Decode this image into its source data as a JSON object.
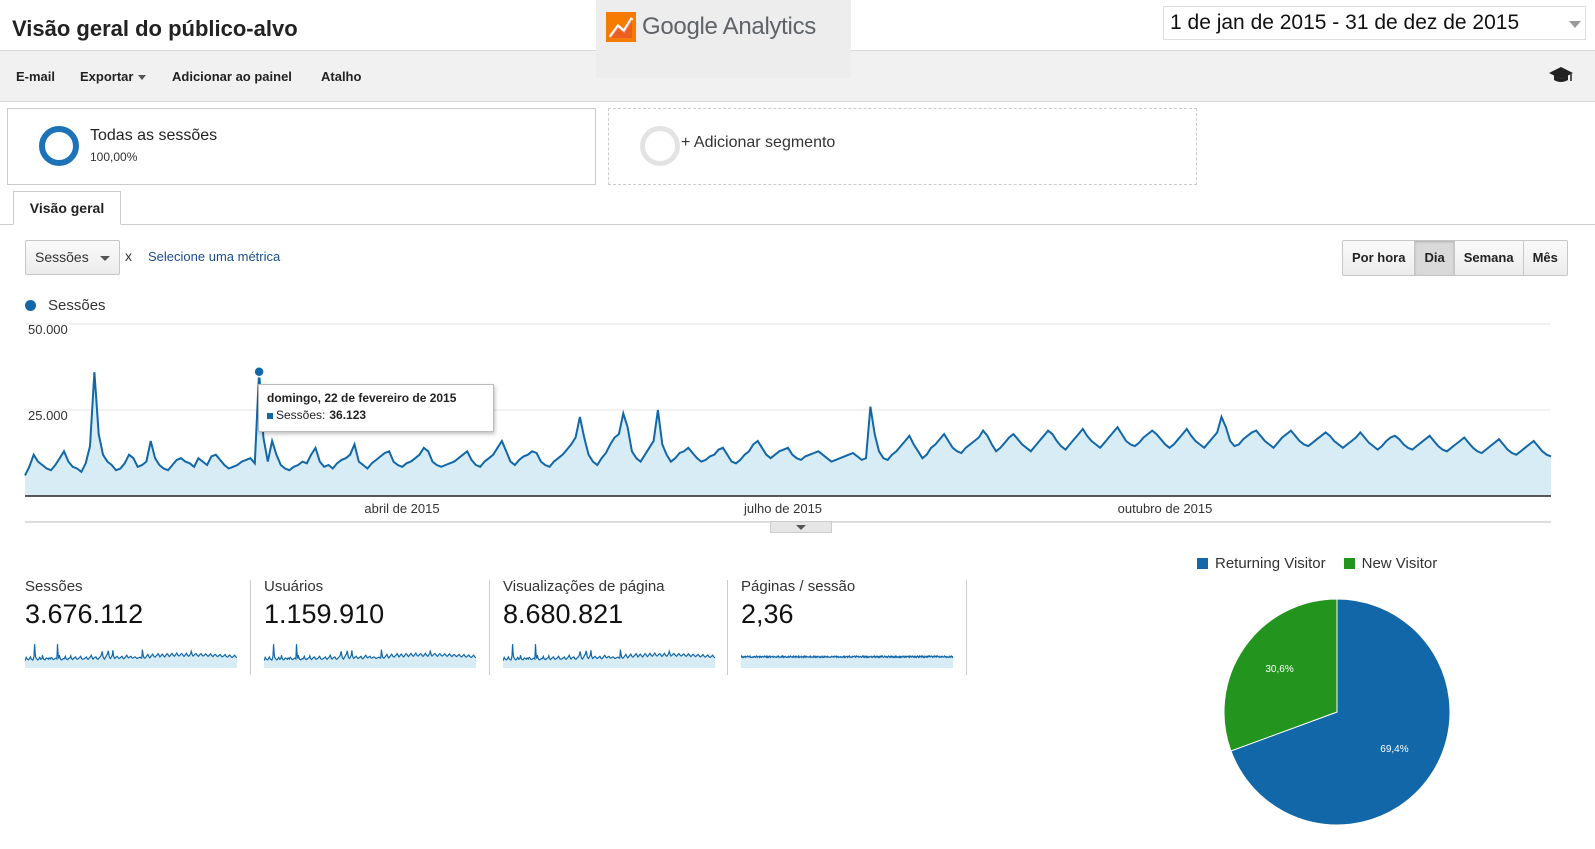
{
  "header": {
    "title": "Visão geral do público-alvo",
    "logo_text": "Google Analytics",
    "date_range": "1 de jan de 2015 - 31 de dez de 2015"
  },
  "toolbar": {
    "email": "E-mail",
    "export": "Exportar",
    "add_to_dashboard": "Adicionar ao painel",
    "shortcut": "Atalho"
  },
  "segments": {
    "all_sessions": {
      "name": "Todas as sessões",
      "percent": "100,00%"
    },
    "add_segment": "+ Adicionar segmento"
  },
  "tabs": {
    "overview": "Visão geral"
  },
  "metric_controls": {
    "selected_metric": "Sessões",
    "remove": "x",
    "select_metric_link": "Selecione uma métrica"
  },
  "granularity": {
    "hourly": "Por hora",
    "day": "Dia",
    "week": "Semana",
    "month": "Mês",
    "active": "Dia"
  },
  "chart": {
    "legend_label": "Sessões",
    "y_ticks": [
      "50.000",
      "25.000"
    ],
    "x_ticks": [
      "abril de 2015",
      "julho de 2015",
      "outubro de 2015"
    ],
    "tooltip": {
      "title": "domingo, 22 de fevereiro de 2015",
      "series": "Sessões:",
      "value": "36.123"
    }
  },
  "chart_data": [
    {
      "type": "area",
      "series": [
        {
          "name": "Sessões",
          "color": "#1167a8",
          "values": [
            6000,
            8500,
            12000,
            10000,
            9000,
            8000,
            7500,
            9000,
            11000,
            13000,
            10000,
            8500,
            8000,
            7000,
            9500,
            14500,
            36000,
            18000,
            12000,
            10000,
            9000,
            7500,
            8000,
            9500,
            12000,
            11000,
            8500,
            9000,
            10000,
            16000,
            11000,
            9000,
            8000,
            7500,
            9000,
            10500,
            11000,
            10000,
            9500,
            8500,
            11000,
            10000,
            9000,
            11500,
            12000,
            10500,
            9000,
            8000,
            8500,
            9000,
            10000,
            10500,
            11000,
            9500,
            36123,
            17000,
            10000,
            16000,
            12000,
            9000,
            8000,
            7500,
            8500,
            9000,
            10000,
            9500,
            12000,
            14000,
            10000,
            8500,
            9000,
            8000,
            9500,
            10500,
            11000,
            12000,
            15000,
            10000,
            9000,
            8000,
            9500,
            10500,
            11500,
            12500,
            13000,
            10000,
            9000,
            8500,
            9500,
            10000,
            11000,
            12000,
            14000,
            13000,
            10000,
            9000,
            8500,
            9000,
            9500,
            10000,
            11000,
            12000,
            13000,
            10500,
            9000,
            8500,
            10000,
            11000,
            12000,
            14000,
            16000,
            13000,
            10000,
            9000,
            10500,
            11500,
            12000,
            13000,
            12500,
            10000,
            9000,
            8500,
            10000,
            11000,
            12000,
            13500,
            15000,
            17000,
            23000,
            17000,
            12000,
            10000,
            9000,
            11000,
            12500,
            15000,
            17000,
            18000,
            24000,
            20000,
            13000,
            11000,
            10000,
            12000,
            14000,
            16000,
            25000,
            15000,
            12000,
            10000,
            11000,
            12500,
            13000,
            14000,
            12500,
            11000,
            10000,
            10500,
            11500,
            12000,
            13500,
            14000,
            12000,
            10000,
            9500,
            10500,
            12000,
            13000,
            15000,
            16000,
            14000,
            12000,
            11000,
            12000,
            13000,
            13500,
            14000,
            12000,
            11000,
            10500,
            11500,
            12000,
            12500,
            13000,
            12000,
            11000,
            10000,
            10500,
            11000,
            11500,
            12000,
            12500,
            11500,
            10500,
            11000,
            26000,
            18000,
            13000,
            11000,
            10500,
            12000,
            13000,
            14500,
            16000,
            17500,
            15000,
            13000,
            11000,
            12000,
            14000,
            15000,
            16500,
            18000,
            16000,
            14000,
            13000,
            12500,
            14000,
            15000,
            16000,
            17000,
            19000,
            17500,
            15000,
            13000,
            14000,
            15500,
            17000,
            18000,
            16500,
            15000,
            14000,
            13000,
            14500,
            16000,
            17500,
            19000,
            18000,
            16000,
            14500,
            13500,
            15000,
            16500,
            18000,
            19500,
            17500,
            16000,
            15000,
            14000,
            15500,
            17000,
            18500,
            20000,
            18000,
            16000,
            15000,
            14500,
            15500,
            17000,
            18000,
            19000,
            18000,
            16500,
            15000,
            14000,
            15000,
            16500,
            18000,
            19500,
            17500,
            16000,
            15000,
            14000,
            15500,
            17000,
            18500,
            23000,
            20000,
            16000,
            14500,
            15000,
            16500,
            17500,
            18500,
            19000,
            17500,
            16000,
            15000,
            14000,
            15500,
            17000,
            18000,
            19000,
            17500,
            16000,
            15000,
            14500,
            15500,
            16500,
            17500,
            18500,
            17500,
            16000,
            15000,
            14000,
            15000,
            16000,
            17000,
            18500,
            17000,
            15500,
            14500,
            13500,
            14500,
            16000,
            17000,
            17500,
            16500,
            15000,
            14000,
            13500,
            14500,
            15500,
            16500,
            17500,
            16000,
            14500,
            13500,
            13000,
            14000,
            15000,
            16000,
            17000,
            15500,
            14000,
            13000,
            12500,
            13500,
            14500,
            15500,
            16500,
            15000,
            13500,
            12500,
            12000,
            13000,
            14000,
            15000,
            16000,
            14500,
            13000,
            12000,
            11500
          ]
        }
      ],
      "ylim": [
        0,
        50000
      ],
      "y_ticks": [
        "50.000",
        "25.000"
      ],
      "x_ticks": [
        "abril de 2015",
        "julho de 2015",
        "outubro de 2015"
      ]
    },
    {
      "type": "pie",
      "categories": [
        "Returning Visitor",
        "New Visitor"
      ],
      "values": [
        69.4,
        30.6
      ],
      "labels": [
        "69,4%",
        "30,6%"
      ],
      "colors": [
        "#1167a8",
        "#23951f"
      ]
    }
  ],
  "scorecards": [
    {
      "label": "Sessões",
      "value": "3.676.112"
    },
    {
      "label": "Usuários",
      "value": "1.159.910"
    },
    {
      "label": "Visualizações de página",
      "value": "8.680.821"
    },
    {
      "label": "Páginas / sessão",
      "value": "2,36"
    }
  ],
  "pie_legend": {
    "returning": "Returning Visitor",
    "new": "New Visitor"
  },
  "colors": {
    "series": "#1167a8",
    "area_fill": "#d8ecf6",
    "returning": "#1167a8",
    "new": "#23951f"
  }
}
